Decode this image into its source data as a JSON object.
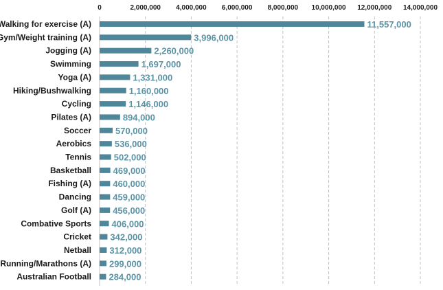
{
  "chart_data": {
    "type": "bar",
    "orientation": "horizontal",
    "title": "",
    "xlabel": "",
    "ylabel": "",
    "xlim": [
      0,
      14000000
    ],
    "x_ticks": [
      0,
      2000000,
      4000000,
      6000000,
      8000000,
      10000000,
      12000000,
      14000000
    ],
    "x_tick_labels": [
      "0",
      "2,000,000",
      "4,000,000",
      "6,000,000",
      "8,000,000",
      "10,000,000",
      "12,000,000",
      "14,000,000"
    ],
    "grid": true,
    "bar_color": "#4f8699",
    "label_color": "#5a93a5",
    "categories": [
      "Walking for exercise (A)",
      "Gym/Weight training (A)",
      "Jogging (A)",
      "Swimming",
      "Yoga (A)",
      "Hiking/Bushwalking",
      "Cycling",
      "Pilates (A)",
      "Soccer",
      "Aerobics",
      "Tennis",
      "Basketball",
      "Fishing (A)",
      "Dancing",
      "Golf (A)",
      "Combative Sports",
      "Cricket",
      "Netball",
      "Running/Marathons (A)",
      "Australian Football"
    ],
    "values": [
      11557000,
      3996000,
      2260000,
      1697000,
      1331000,
      1160000,
      1146000,
      894000,
      570000,
      536000,
      502000,
      469000,
      460000,
      459000,
      456000,
      406000,
      342000,
      312000,
      299000,
      284000
    ],
    "value_labels": [
      "11,557,000",
      "3,996,000",
      "2,260,000",
      "1,697,000",
      "1,331,000",
      "1,160,000",
      "1,146,000",
      "894,000",
      "570,000",
      "536,000",
      "502,000",
      "469,000",
      "460,000",
      "459,000",
      "456,000",
      "406,000",
      "342,000",
      "312,000",
      "299,000",
      "284,000"
    ]
  }
}
